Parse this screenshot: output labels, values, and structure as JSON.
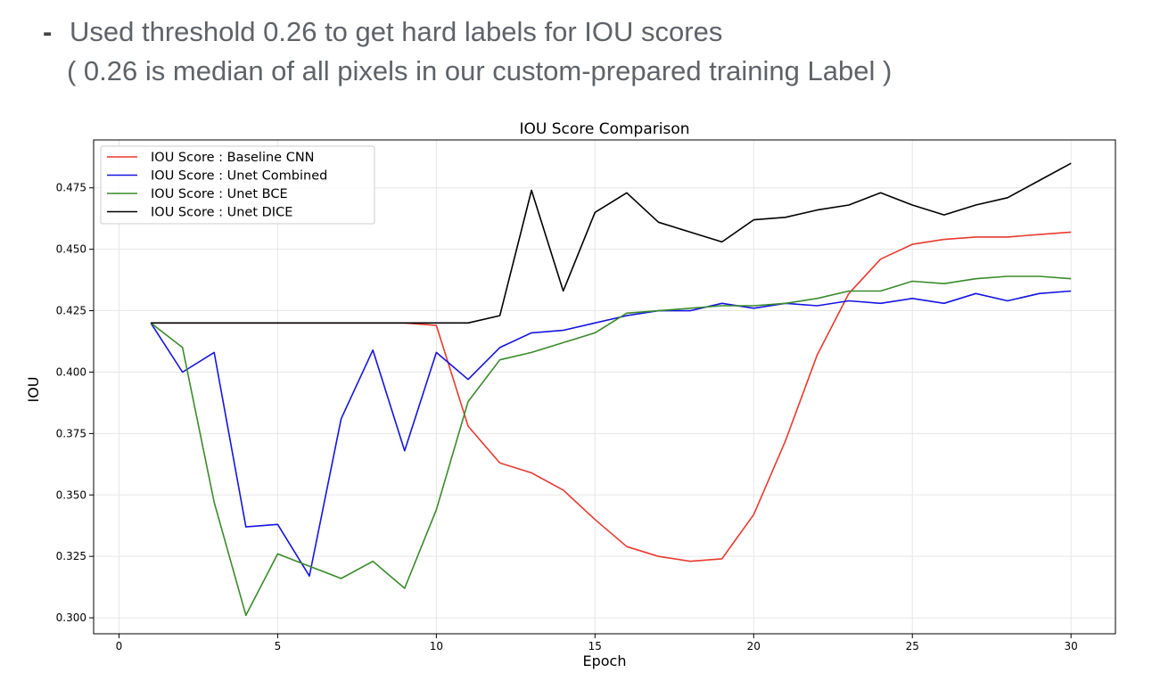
{
  "notes": {
    "bullet": "-",
    "line1": "Used threshold 0.26 to get hard labels for IOU scores",
    "line2": "( 0.26 is median of all pixels in our custom-prepared training Label )"
  },
  "chart_data": {
    "type": "line",
    "title": "IOU Score Comparison",
    "xlabel": "Epoch",
    "ylabel": "IOU",
    "xlim": [
      -0.8,
      31.4
    ],
    "ylim": [
      0.2935,
      0.4945
    ],
    "xticks": [
      0,
      5,
      10,
      15,
      20,
      25,
      30
    ],
    "yticks": [
      0.3,
      0.325,
      0.35,
      0.375,
      0.4,
      0.425,
      0.45,
      0.475
    ],
    "ytick_labels": [
      "0.300",
      "0.325",
      "0.350",
      "0.375",
      "0.400",
      "0.425",
      "0.450",
      "0.475"
    ],
    "grid": true,
    "legend_position": "upper-left",
    "x": [
      1,
      2,
      3,
      4,
      5,
      6,
      7,
      8,
      9,
      10,
      11,
      12,
      13,
      14,
      15,
      16,
      17,
      18,
      19,
      20,
      21,
      22,
      23,
      24,
      25,
      26,
      27,
      28,
      29,
      30
    ],
    "series": [
      {
        "name": "IOU Score : Baseline CNN",
        "color": "#e8392f",
        "values": [
          0.42,
          0.42,
          0.42,
          0.42,
          0.42,
          0.42,
          0.42,
          0.42,
          0.42,
          0.419,
          0.378,
          0.363,
          0.359,
          0.352,
          0.34,
          0.329,
          0.325,
          0.323,
          0.324,
          0.342,
          0.372,
          0.407,
          0.432,
          0.446,
          0.452,
          0.454,
          0.455,
          0.455,
          0.456,
          0.457
        ]
      },
      {
        "name": "IOU Score : Unet Combined",
        "color": "#1414e0",
        "values": [
          0.42,
          0.4,
          0.408,
          0.337,
          0.338,
          0.317,
          0.381,
          0.409,
          0.368,
          0.408,
          0.397,
          0.41,
          0.416,
          0.417,
          0.42,
          0.423,
          0.425,
          0.425,
          0.428,
          0.426,
          0.428,
          0.427,
          0.429,
          0.428,
          0.43,
          0.428,
          0.432,
          0.429,
          0.432,
          0.433
        ]
      },
      {
        "name": "IOU Score : Unet BCE",
        "color": "#3a8a2a",
        "values": [
          0.42,
          0.41,
          0.347,
          0.301,
          0.326,
          0.321,
          0.316,
          0.323,
          0.312,
          0.344,
          0.388,
          0.405,
          0.408,
          0.412,
          0.416,
          0.424,
          0.425,
          0.426,
          0.427,
          0.427,
          0.428,
          0.43,
          0.433,
          0.433,
          0.437,
          0.436,
          0.438,
          0.439,
          0.439,
          0.438
        ]
      },
      {
        "name": "IOU Score : Unet DICE",
        "color": "#000000",
        "values": [
          0.42,
          0.42,
          0.42,
          0.42,
          0.42,
          0.42,
          0.42,
          0.42,
          0.42,
          0.42,
          0.42,
          0.423,
          0.474,
          0.433,
          0.465,
          0.473,
          0.461,
          0.457,
          0.453,
          0.462,
          0.463,
          0.466,
          0.468,
          0.473,
          0.468,
          0.464,
          0.468,
          0.471,
          0.478,
          0.485
        ]
      }
    ]
  }
}
